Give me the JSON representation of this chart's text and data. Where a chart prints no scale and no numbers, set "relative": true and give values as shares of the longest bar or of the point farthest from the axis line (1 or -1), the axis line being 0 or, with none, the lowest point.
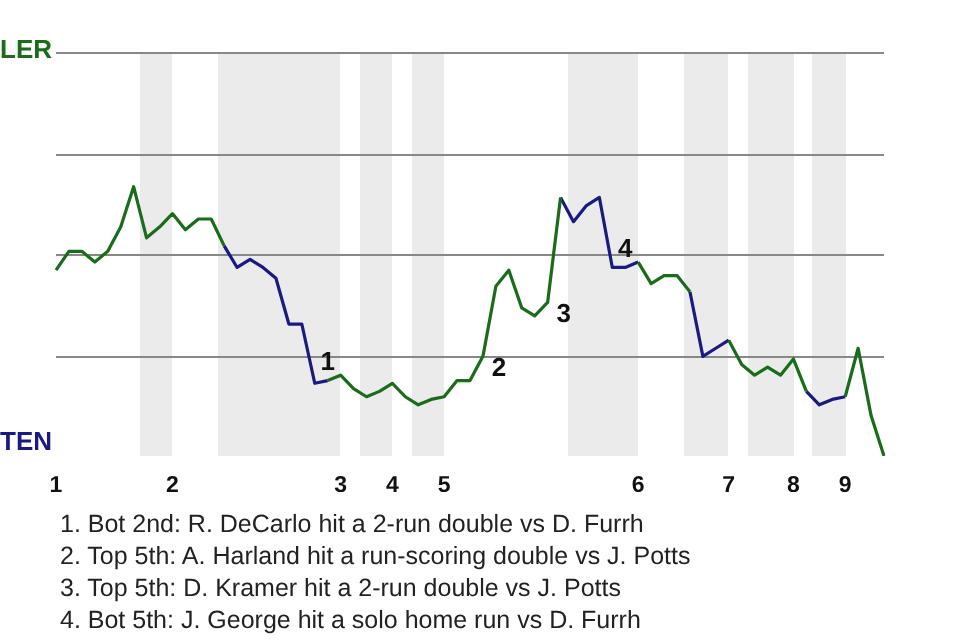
{
  "chart_data": {
    "type": "line",
    "categories": [
      "1",
      null,
      null,
      null,
      null,
      null,
      null,
      null,
      null,
      "2",
      null,
      null,
      null,
      null,
      null,
      null,
      null,
      null,
      null,
      null,
      null,
      null,
      "3",
      null,
      null,
      null,
      "4",
      null,
      null,
      null,
      "5",
      null,
      null,
      null,
      null,
      null,
      null,
      null,
      null,
      null,
      null,
      null,
      null,
      null,
      null,
      "6",
      null,
      null,
      null,
      null,
      null,
      null,
      "7",
      null,
      null,
      null,
      null,
      "8",
      null,
      null,
      null,
      "9",
      null,
      null,
      null
    ],
    "series": [
      {
        "color": "#1a6b1a",
        "values": [
          0.69,
          0.76,
          0.76,
          0.72,
          0.76,
          0.85,
          1,
          0.81,
          0.85,
          0.9,
          0.84,
          0.88,
          0.88,
          0.78,
          null,
          null,
          null,
          null,
          null,
          null,
          null,
          0.28,
          0.3,
          0.25,
          0.22,
          0.24,
          0.27,
          0.22,
          0.19,
          0.21,
          0.22,
          0.28,
          0.28,
          0.37,
          0.63,
          0.69,
          0.55,
          0.52,
          0.57,
          0.96,
          null,
          null,
          null,
          null,
          null,
          0.72,
          0.64,
          0.67,
          0.67,
          0.61,
          null,
          null,
          0.43,
          0.34,
          0.3,
          0.33,
          0.3,
          0.36,
          0.24,
          null,
          null,
          0.22,
          0.4,
          0.15,
          0
        ]
      },
      {
        "color": "#1a1a80",
        "values": [
          null,
          null,
          null,
          null,
          null,
          null,
          null,
          null,
          null,
          null,
          null,
          null,
          null,
          0.78,
          0.7,
          0.73,
          0.7,
          0.66,
          0.49,
          0.49,
          0.27,
          0.28,
          null,
          null,
          null,
          null,
          null,
          null,
          null,
          null,
          null,
          null,
          null,
          null,
          null,
          null,
          null,
          null,
          null,
          0.96,
          0.87,
          0.93,
          0.96,
          0.7,
          0.7,
          0.72,
          null,
          null,
          null,
          0.61,
          0.37,
          0.4,
          0.43,
          null,
          null,
          null,
          null,
          null,
          0.24,
          0.19,
          0.21,
          0.22,
          null,
          null,
          null
        ]
      }
    ],
    "relative": true,
    "ref_lines": [
      {
        "axis": "y",
        "value": 0.75,
        "color": "#888888"
      },
      {
        "axis": "y",
        "value": 0.37,
        "color": "#888888"
      }
    ],
    "annotations": [
      "LER",
      "TEN",
      {
        "text": "1",
        "y": 0.28
      },
      "2",
      "3",
      {
        "text": "4",
        "y": 0.7
      },
      "1. Bot 2nd: R. DeCarlo hit a 2-run double vs D. Furrh",
      "2. Top 5th: A. Harland hit a run-scoring double vs J. Potts",
      "3. Top 5th: D. Kramer hit a 2-run double vs J. Potts",
      "4. Bot 5th: J. George hit a solo home run vs D. Furrh"
    ]
  }
}
